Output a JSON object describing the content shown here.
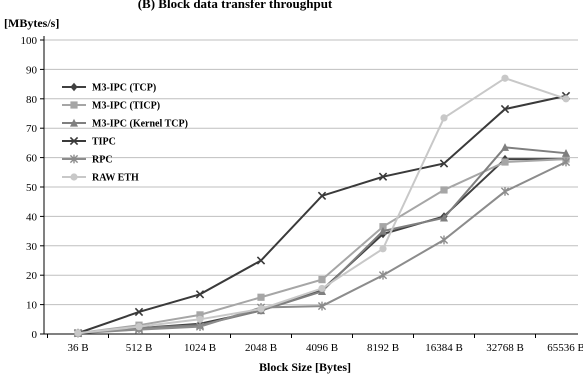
{
  "chart_data": {
    "type": "line",
    "title": "(B) Block data transfer throughput",
    "ylabel": "[MBytes/s]",
    "xlabel": "Block Size [Bytes]",
    "ylim": [
      0,
      100
    ],
    "yticks": [
      0,
      10,
      20,
      30,
      40,
      50,
      60,
      70,
      80,
      90,
      100
    ],
    "grid": true,
    "legend": "top-left",
    "categories": [
      "36 B",
      "512 B",
      "1024 B",
      "2048 B",
      "4096 B",
      "8192 B",
      "16384 B",
      "32768 B",
      "65536 B"
    ],
    "series": [
      {
        "name": "M3-IPC (TCP)",
        "marker": "diamond",
        "color": "#404040",
        "values": [
          0.3,
          2.0,
          3.5,
          8.0,
          15.0,
          34.0,
          40.0,
          59.5,
          59.5
        ]
      },
      {
        "name": "M3-IPC (TICP)",
        "marker": "square",
        "color": "#a6a6a6",
        "values": [
          0.3,
          3.0,
          6.5,
          12.5,
          18.5,
          36.5,
          49.0,
          58.5,
          59.5
        ]
      },
      {
        "name": "M3-IPC (Kernel TCP)",
        "marker": "triangle",
        "color": "#7f7f7f",
        "values": [
          0.3,
          2.0,
          3.0,
          8.0,
          14.5,
          35.0,
          39.5,
          63.5,
          61.5
        ]
      },
      {
        "name": "TIPC",
        "marker": "x",
        "color": "#3a3a3a",
        "values": [
          0.3,
          7.5,
          13.5,
          25.0,
          47.0,
          53.5,
          58.0,
          76.5,
          81.0
        ]
      },
      {
        "name": "RPC",
        "marker": "star",
        "color": "#8c8c8c",
        "values": [
          0.3,
          1.5,
          2.5,
          9.0,
          9.5,
          20.0,
          32.0,
          48.5,
          58.5
        ]
      },
      {
        "name": "RAW ETH",
        "marker": "circle",
        "color": "#c8c8c8",
        "values": [
          0.3,
          2.5,
          5.0,
          8.5,
          15.5,
          29.0,
          73.5,
          87.0,
          80.0
        ]
      }
    ]
  }
}
